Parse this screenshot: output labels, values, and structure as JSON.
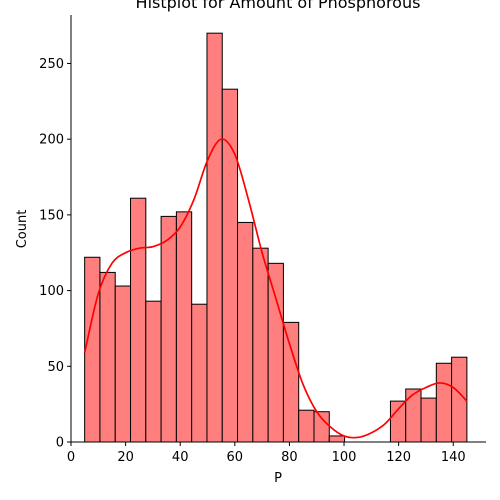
{
  "chart_data": {
    "type": "bar",
    "title": "Histplot for Amount of Phosphorous",
    "xlabel": "P",
    "ylabel": "Count",
    "xlim": [
      0,
      152
    ],
    "ylim": [
      0,
      282
    ],
    "x_ticks": [
      0,
      20,
      40,
      60,
      80,
      100,
      120,
      140
    ],
    "y_ticks": [
      0,
      50,
      100,
      150,
      200,
      250
    ],
    "bin_width": 5.6,
    "bins": [
      {
        "x0": 5.0,
        "x1": 10.6,
        "count": 122
      },
      {
        "x0": 10.6,
        "x1": 16.2,
        "count": 112
      },
      {
        "x0": 16.2,
        "x1": 21.8,
        "count": 103
      },
      {
        "x0": 21.8,
        "x1": 27.4,
        "count": 161
      },
      {
        "x0": 27.4,
        "x1": 33.0,
        "count": 93
      },
      {
        "x0": 33.0,
        "x1": 38.6,
        "count": 149
      },
      {
        "x0": 38.6,
        "x1": 44.2,
        "count": 152
      },
      {
        "x0": 44.2,
        "x1": 49.8,
        "count": 91
      },
      {
        "x0": 49.8,
        "x1": 55.4,
        "count": 270
      },
      {
        "x0": 55.4,
        "x1": 61.0,
        "count": 233
      },
      {
        "x0": 61.0,
        "x1": 66.6,
        "count": 145
      },
      {
        "x0": 66.6,
        "x1": 72.2,
        "count": 128
      },
      {
        "x0": 72.2,
        "x1": 77.8,
        "count": 118
      },
      {
        "x0": 77.8,
        "x1": 83.4,
        "count": 79
      },
      {
        "x0": 83.4,
        "x1": 89.0,
        "count": 21
      },
      {
        "x0": 89.0,
        "x1": 94.6,
        "count": 20
      },
      {
        "x0": 94.6,
        "x1": 100.2,
        "count": 4
      },
      {
        "x0": 100.2,
        "x1": 105.8,
        "count": 0
      },
      {
        "x0": 105.8,
        "x1": 111.4,
        "count": 0
      },
      {
        "x0": 111.4,
        "x1": 117.0,
        "count": 0
      },
      {
        "x0": 117.0,
        "x1": 122.6,
        "count": 27
      },
      {
        "x0": 122.6,
        "x1": 128.2,
        "count": 35
      },
      {
        "x0": 128.2,
        "x1": 133.8,
        "count": 29
      },
      {
        "x0": 133.8,
        "x1": 139.4,
        "count": 52
      },
      {
        "x0": 139.4,
        "x1": 145.0,
        "count": 56
      }
    ],
    "kde": {
      "x": [
        5,
        10,
        15,
        20,
        25,
        30,
        35,
        40,
        45,
        50,
        55,
        60,
        65,
        70,
        75,
        80,
        85,
        90,
        95,
        100,
        105,
        110,
        115,
        120,
        125,
        130,
        135,
        140,
        145
      ],
      "y": [
        59,
        98,
        118,
        125,
        128,
        129,
        133,
        142,
        160,
        186,
        200,
        190,
        160,
        125,
        95,
        65,
        38,
        20,
        10,
        4,
        3,
        6,
        12,
        22,
        31,
        36,
        39,
        36,
        27
      ]
    },
    "colors": {
      "bar_fill": "#ff7f7f",
      "bar_edge": "#000000",
      "kde_line": "#ff0000",
      "axis": "#000000"
    },
    "grid": false,
    "legend": "none"
  }
}
